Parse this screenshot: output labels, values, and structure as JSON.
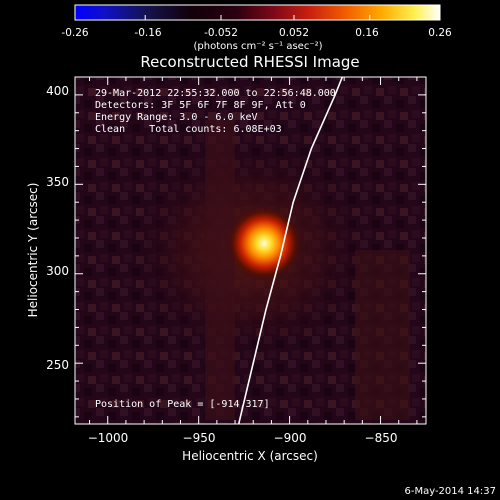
{
  "colorbar": {
    "tick_labels": [
      "-0.26",
      "-0.16",
      "-0.052",
      "0.052",
      "0.16",
      "0.26"
    ],
    "range": [
      -0.26,
      0.26
    ],
    "unit_label": "(photons cm⁻² s⁻¹ asec⁻²)",
    "colormap": "blue-black-red-yellow-white"
  },
  "title": "Reconstructed RHESSI Image",
  "info": {
    "time_range": "29-Mar-2012 22:55:32.000 to 22:56:48.000",
    "detectors": "Detectors: 3F 5F 6F 7F 8F 9F, Att 0",
    "energy_range": "Energy Range: 3.0 - 6.0 keV",
    "algorithm_counts": "Clean    Total counts: 6.08E+03"
  },
  "peak_label": "Position of Peak = [-914,317]",
  "axes": {
    "xlabel": "Heliocentric X (arcsec)",
    "ylabel": "Heliocentric Y (arcsec)",
    "xlim": [
      -1018,
      -825
    ],
    "ylim": [
      216,
      410
    ],
    "xticks": [
      -1000,
      -950,
      -900,
      -850
    ],
    "xtick_labels": [
      "−1000",
      "−950",
      "−900",
      "−850"
    ],
    "yticks": [
      250,
      300,
      350,
      400
    ],
    "ytick_labels": [
      "250",
      "300",
      "350",
      "400"
    ]
  },
  "source": {
    "x": -914,
    "y": 317,
    "colors": {
      "core": "#fffce0",
      "inner": "#ffe030",
      "mid": "#ff8c00",
      "outer": "#c82000",
      "halo": "#5a1000"
    }
  },
  "limb_points": [
    [
      -928,
      216
    ],
    [
      -920,
      250
    ],
    [
      -913,
      280
    ],
    [
      -905,
      310
    ],
    [
      -898,
      340
    ],
    [
      -888,
      370
    ],
    [
      -875,
      400
    ],
    [
      -871,
      410
    ]
  ],
  "timestamp": "6-May-2014 14:37"
}
